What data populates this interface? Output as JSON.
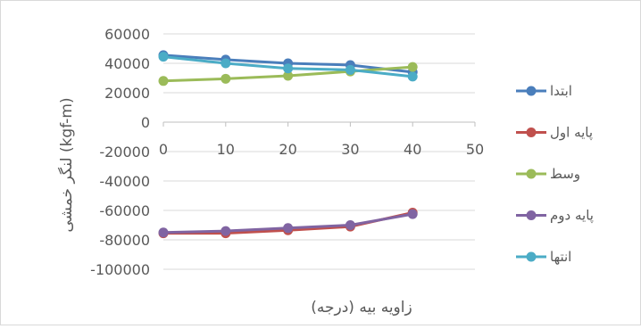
{
  "chart_data": {
    "type": "line",
    "title": "",
    "xlabel": "زاویه بیه (درجه)",
    "ylabel": "لنگر خمشی (kgf-m)",
    "x": [
      0,
      10,
      20,
      30,
      40
    ],
    "xlim": [
      0,
      50
    ],
    "ylim": [
      -100000,
      60000
    ],
    "x_ticks": [
      0,
      10,
      20,
      30,
      40,
      50
    ],
    "y_ticks": [
      60000,
      40000,
      20000,
      0,
      -20000,
      -40000,
      -60000,
      -80000,
      -100000
    ],
    "grid": "horizontal",
    "legend_position": "right",
    "series": [
      {
        "name": "ابتدا",
        "color": "#4A7EBB",
        "values": [
          45500,
          42500,
          40000,
          38800,
          34000
        ]
      },
      {
        "name": "پایه اول",
        "color": "#C0504D",
        "values": [
          -75500,
          -75500,
          -73500,
          -71000,
          -61500
        ]
      },
      {
        "name": "وسط",
        "color": "#9BBB59",
        "values": [
          28000,
          29500,
          31500,
          34500,
          37500
        ]
      },
      {
        "name": "پایه دوم",
        "color": "#8064A2",
        "values": [
          -75000,
          -74000,
          -72000,
          -70000,
          -62500
        ]
      },
      {
        "name": "انتها",
        "color": "#4BACC6",
        "values": [
          44500,
          40000,
          36500,
          35500,
          31000
        ]
      }
    ]
  }
}
